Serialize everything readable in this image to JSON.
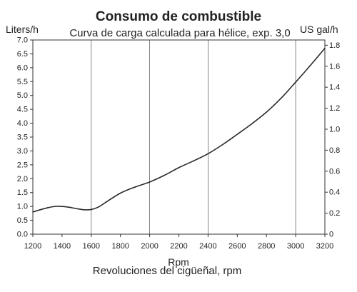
{
  "chart_data": {
    "type": "line",
    "title": "Consumo de combustible",
    "subtitle": "Curva de carga calculada para hélice, exp. 3,0",
    "xlabel": "Rpm",
    "xlabel2": "Revoluciones del cigüeñal, rpm",
    "ylabel_left": "Liters/h",
    "ylabel_right": "US gal/h",
    "xlim": [
      1200,
      3200
    ],
    "ylim": [
      0,
      7.0
    ],
    "ylim_right": [
      0,
      1.85
    ],
    "grid": true,
    "x_ticks": [
      "1200",
      "1400",
      "1600",
      "1800",
      "2000",
      "2200",
      "2400",
      "2600",
      "2800",
      "3000",
      "3200"
    ],
    "x_gridlines": [
      1600,
      2000,
      2400,
      3000
    ],
    "y_ticks_left": [
      "0.0",
      "0.5",
      "1.0",
      "1.5",
      "2.0",
      "2.5",
      "3.0",
      "3.5",
      "4.0",
      "4.5",
      "5.0",
      "5.5",
      "6.0",
      "6.5",
      "7.0"
    ],
    "y_ticks_right": [
      "0",
      "0.2",
      "0.4",
      "0.6",
      "0.8",
      "1.0",
      "1.2",
      "1.4",
      "1.6",
      "1.8"
    ],
    "series": [
      {
        "x": [
          1200,
          1250,
          1300,
          1350,
          1400,
          1450,
          1500,
          1550,
          1600,
          1650,
          1700,
          1800,
          1900,
          2000,
          2100,
          2200,
          2300,
          2400,
          2500,
          2600,
          2700,
          2800,
          2900,
          3000,
          3100,
          3200
        ],
        "y": [
          0.8,
          0.88,
          0.95,
          1.0,
          1.0,
          0.97,
          0.92,
          0.88,
          0.89,
          0.98,
          1.15,
          1.48,
          1.7,
          1.88,
          2.12,
          2.4,
          2.64,
          2.9,
          3.23,
          3.6,
          3.98,
          4.4,
          4.9,
          5.48,
          6.08,
          6.7
        ]
      }
    ]
  }
}
